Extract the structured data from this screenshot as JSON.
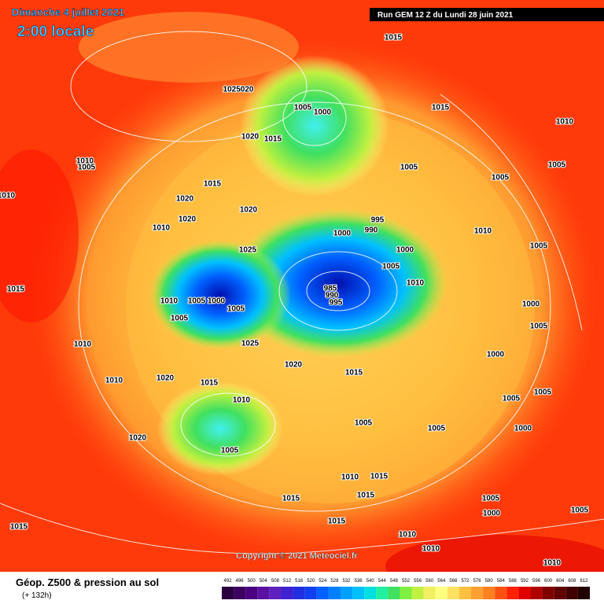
{
  "header": {
    "date": "Dimanche 4 juillet 2021",
    "time": "2:00 locale",
    "run": "Run GEM 12 Z du Lundi 28 juin 2021"
  },
  "copyright": "Copyright © 2021 Meteociel.fr",
  "footer": {
    "title": "Géop. Z500 & pression au sol",
    "lead": "(+ 132h)"
  },
  "scale": {
    "values": [
      492,
      496,
      500,
      504,
      508,
      512,
      516,
      520,
      524,
      528,
      532,
      536,
      540,
      544,
      548,
      552,
      556,
      560,
      564,
      568,
      572,
      576,
      580,
      584,
      588,
      592,
      596,
      600,
      604,
      608,
      612
    ],
    "colors": [
      "#2a0040",
      "#3c0060",
      "#4a0080",
      "#5a10a0",
      "#6020c0",
      "#4020d0",
      "#2030e0",
      "#1040f0",
      "#0060ff",
      "#0080ff",
      "#00a0ff",
      "#00c0ff",
      "#00e0e0",
      "#20f0a0",
      "#40e060",
      "#80f040",
      "#c0f040",
      "#f0f060",
      "#ffff80",
      "#ffe060",
      "#ffc040",
      "#ffa030",
      "#ff8020",
      "#ff5010",
      "#ff2000",
      "#e00000",
      "#b00000",
      "#800000",
      "#600000",
      "#400000",
      "#200000"
    ]
  },
  "isobar_labels": [
    "1015",
    "1025020",
    "1005",
    "1000",
    "1020",
    "1015",
    "1015",
    "1010",
    "1005",
    "1005",
    "1005",
    "1010",
    "1005",
    "1015",
    "1020",
    "1020",
    "1020",
    "995",
    "990",
    "1000",
    "1010",
    "1010",
    "1025",
    "1000",
    "1005",
    "1010",
    "985",
    "990",
    "995",
    "1005",
    "1000",
    "1010",
    "1005",
    "1005",
    "1015",
    "1010",
    "1010",
    "1025",
    "1020",
    "1015",
    "1015",
    "1020",
    "1010",
    "1010",
    "1005",
    "1020",
    "1005",
    "1005",
    "1005",
    "1000",
    "1005",
    "1000",
    "1005",
    "1000",
    "1005",
    "1015",
    "1015",
    "1015",
    "1010",
    "1015",
    "1005",
    "1000",
    "1005",
    "1010",
    "1010",
    "1010",
    "1015"
  ]
}
